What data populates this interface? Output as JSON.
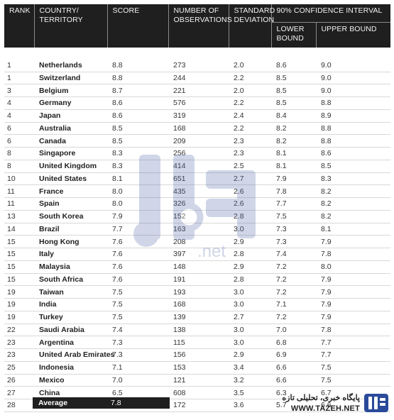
{
  "headers": {
    "rank": "RANK",
    "country": "COUNTRY/ TERRITORY",
    "score": "SCORE",
    "observations": "NUMBER OF OBSERVATIONS",
    "std": "STANDARD DEVIATION",
    "ci": "90% CONFIDENCE INTERVAL",
    "lower": "LOWER BOUND",
    "upper": "UPPER BOUND"
  },
  "rows": [
    [
      "1",
      "Netherlands",
      "8.8",
      "273",
      "2.0",
      "8.6",
      "9.0"
    ],
    [
      "1",
      "Switzerland",
      "8.8",
      "244",
      "2.2",
      "8.5",
      "9.0"
    ],
    [
      "3",
      "Belgium",
      "8.7",
      "221",
      "2.0",
      "8.5",
      "9.0"
    ],
    [
      "4",
      "Germany",
      "8.6",
      "576",
      "2.2",
      "8.5",
      "8.8"
    ],
    [
      "4",
      "Japan",
      "8.6",
      "319",
      "2.4",
      "8.4",
      "8.9"
    ],
    [
      "6",
      "Australia",
      "8.5",
      "168",
      "2.2",
      "8.2",
      "8.8"
    ],
    [
      "6",
      "Canada",
      "8.5",
      "209",
      "2.3",
      "8.2",
      "8.8"
    ],
    [
      "8",
      "Singapore",
      "8.3",
      "256",
      "2.3",
      "8.1",
      "8.6"
    ],
    [
      "8",
      "United Kingdom",
      "8.3",
      "414",
      "2.5",
      "8.1",
      "8.5"
    ],
    [
      "10",
      "United States",
      "8.1",
      "651",
      "2.7",
      "7.9",
      "8.3"
    ],
    [
      "11",
      "France",
      "8.0",
      "435",
      "2.6",
      "7.8",
      "8.2"
    ],
    [
      "11",
      "Spain",
      "8.0",
      "326",
      "2.6",
      "7.7",
      "8.2"
    ],
    [
      "13",
      "South Korea",
      "7.9",
      "152",
      "2.8",
      "7.5",
      "8.2"
    ],
    [
      "14",
      "Brazil",
      "7.7",
      "163",
      "3.0",
      "7.3",
      "8.1"
    ],
    [
      "15",
      "Hong Kong",
      "7.6",
      "208",
      "2.9",
      "7.3",
      "7.9"
    ],
    [
      "15",
      "Italy",
      "7.6",
      "397",
      "2.8",
      "7.4",
      "7.8"
    ],
    [
      "15",
      "Malaysia",
      "7.6",
      "148",
      "2.9",
      "7.2",
      "8.0"
    ],
    [
      "15",
      "South Africa",
      "7.6",
      "191",
      "2.8",
      "7.2",
      "7.9"
    ],
    [
      "19",
      "Taiwan",
      "7.5",
      "193",
      "3.0",
      "7.2",
      "7.9"
    ],
    [
      "19",
      "India",
      "7.5",
      "168",
      "3.0",
      "7.1",
      "7.9"
    ],
    [
      "19",
      "Turkey",
      "7.5",
      "139",
      "2.7",
      "7.2",
      "7.9"
    ],
    [
      "22",
      "Saudi Arabia",
      "7.4",
      "138",
      "3.0",
      "7.0",
      "7.8"
    ],
    [
      "23",
      "Argentina",
      "7.3",
      "115",
      "3.0",
      "6.8",
      "7.7"
    ],
    [
      "23",
      "United Arab Emirates",
      "7.3",
      "156",
      "2.9",
      "6.9",
      "7.7"
    ],
    [
      "25",
      "Indonesia",
      "7.1",
      "153",
      "3.4",
      "6.6",
      "7.5"
    ],
    [
      "26",
      "Mexico",
      "7.0",
      "121",
      "3.2",
      "6.6",
      "7.5"
    ],
    [
      "27",
      "China",
      "6.5",
      "608",
      "3.5",
      "6.3",
      "6.7"
    ],
    [
      "28",
      "Russia",
      "6.1",
      "172",
      "3.6",
      "5.7",
      "6.6"
    ]
  ],
  "average": {
    "label": "Average",
    "value": "7.8"
  },
  "watermark": {
    "text": ".net",
    "logo": "tazeh-logo"
  },
  "brand": {
    "persian": "پایگاه خبری، تحلیلی تازه",
    "url": "WWW.TAZEH.NET",
    "logo": "tazeh-logo"
  }
}
